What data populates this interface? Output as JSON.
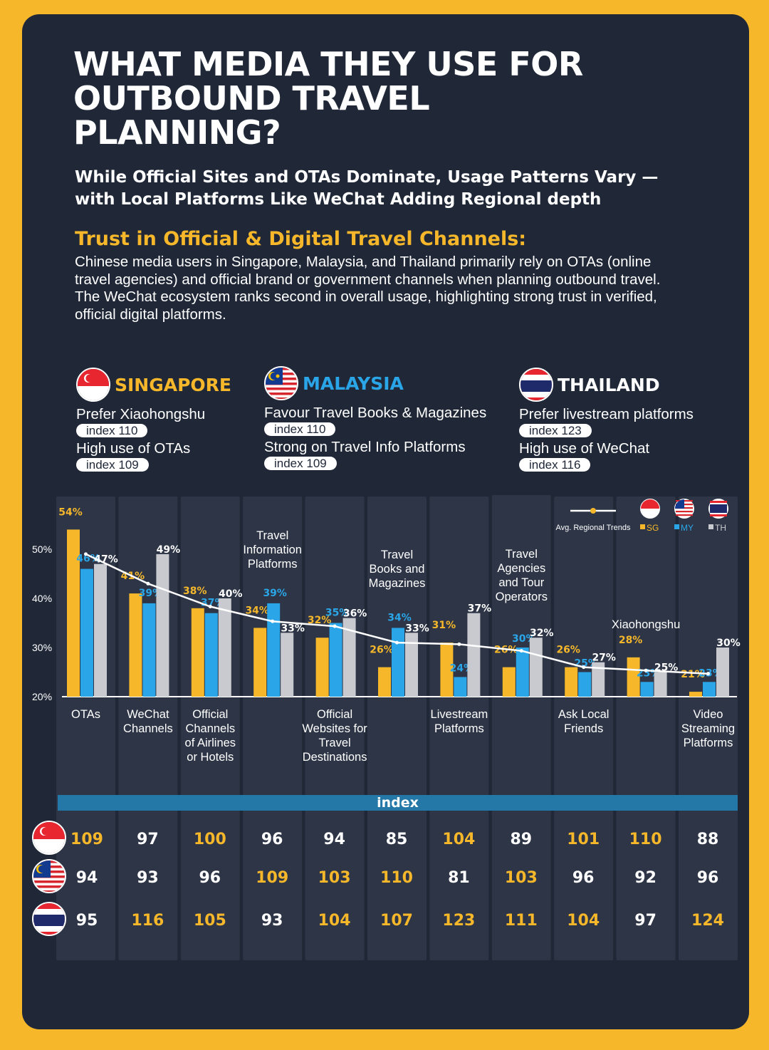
{
  "title": "WHAT MEDIA THEY USE FOR OUTBOUND TRAVEL PLANNING?",
  "subtitle": "While Official Sites and OTAs Dominate, Usage Patterns Vary — with Local Platforms Like WeChat Adding Regional depth",
  "section_heading": "Trust in Official & Digital Travel Channels:",
  "body_paragraphs": [
    "Chinese media users in Singapore, Malaysia, and Thailand primarily rely on OTAs (online travel agencies) and official brand or government channels when planning outbound travel.",
    "The WeChat ecosystem ranks second in overall usage, highlighting strong trust in verified, official digital platforms."
  ],
  "countries": [
    {
      "name": "SINGAPORE",
      "color": "#f6b82a",
      "items": [
        {
          "label": "Prefer Xiaohongshu",
          "index": "index 110"
        },
        {
          "label": "High use of OTAs",
          "index": "index 109"
        }
      ]
    },
    {
      "name": "MALAYSIA",
      "color": "#2aa6e8",
      "items": [
        {
          "label": "Favour Travel Books & Magazines",
          "index": "index 110"
        },
        {
          "label": "Strong on Travel Info Platforms",
          "index": "index 109"
        }
      ]
    },
    {
      "name": "THAILAND",
      "color": "#ffffff",
      "items": [
        {
          "label": "Prefer livestream platforms",
          "index": "index 123"
        },
        {
          "label": "High use of WeChat",
          "index": "index 116"
        }
      ]
    }
  ],
  "chart_data": {
    "type": "bar",
    "categories": [
      "OTAs",
      "WeChat Channels",
      "Official Channels of Airlines or Hotels",
      "Travel Information Platforms",
      "Official Websites for Travel Destinations",
      "Travel Books and Magazines",
      "Livestream Platforms",
      "Travel Agencies and Tour Operators",
      "Ask Local Friends",
      "Xiaohongshu",
      "Video Streaming Platforms"
    ],
    "series": [
      {
        "name": "SG",
        "color": "#f6b82a",
        "values": [
          54,
          41,
          38,
          34,
          32,
          26,
          31,
          26,
          26,
          28,
          21
        ]
      },
      {
        "name": "MY",
        "color": "#2aa6e8",
        "values": [
          46,
          39,
          37,
          39,
          35,
          34,
          24,
          30,
          25,
          23,
          23
        ]
      },
      {
        "name": "TH",
        "color": "#c9cacf",
        "values": [
          47,
          49,
          40,
          33,
          36,
          33,
          37,
          32,
          27,
          25,
          30
        ]
      }
    ],
    "trend": {
      "name": "Avg. Regional Trends"
    },
    "yticks": [
      "20%",
      "30%",
      "40%",
      "50%"
    ],
    "ylim": [
      20,
      57
    ],
    "legend": "top-right"
  },
  "index_table": {
    "label": "index",
    "rows": [
      {
        "country": "SG",
        "values": [
          109,
          97,
          100,
          96,
          94,
          85,
          104,
          89,
          101,
          110,
          88
        ]
      },
      {
        "country": "MY",
        "values": [
          94,
          93,
          96,
          109,
          103,
          110,
          81,
          103,
          96,
          92,
          96
        ]
      },
      {
        "country": "TH",
        "values": [
          95,
          116,
          105,
          93,
          104,
          107,
          123,
          111,
          104,
          97,
          124
        ]
      }
    ]
  }
}
